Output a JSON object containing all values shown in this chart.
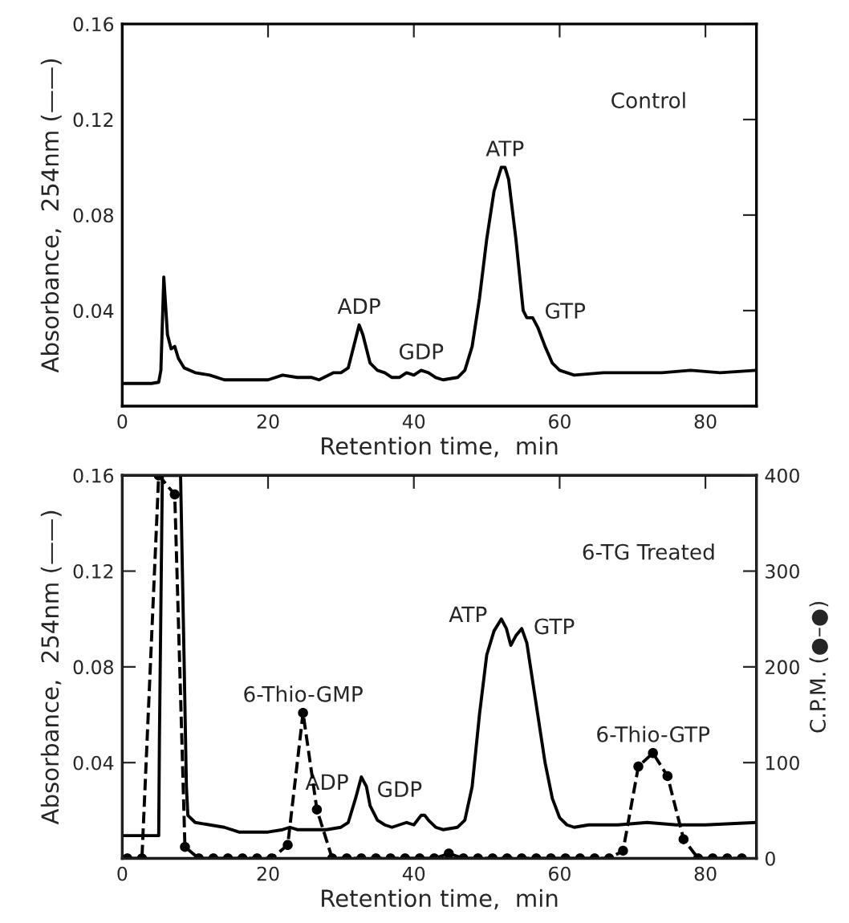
{
  "chart_data": [
    {
      "type": "line",
      "xlabel": "Retention time,  min",
      "ylabel": "Absorbance,  254nm (——)",
      "xlim": [
        0,
        87
      ],
      "ylim": [
        0,
        0.16
      ],
      "xticks": [
        0,
        20,
        40,
        60,
        80
      ],
      "yticks": [
        {
          "value": 0,
          "label": null
        },
        0.04,
        0.08,
        0.12,
        0.16
      ],
      "grid": false,
      "legend": false,
      "series": [
        {
          "color": "#000000",
          "marker": "none",
          "line_style": "solid",
          "x": [
            0,
            4,
            5,
            5.3,
            5.7,
            6.2,
            6.7,
            7.2,
            7.7,
            8.5,
            10,
            12,
            14,
            16,
            18,
            20,
            22,
            24,
            26,
            27,
            29,
            30,
            31,
            32,
            32.5,
            33,
            34,
            35,
            36,
            37,
            38,
            39,
            40,
            41,
            42,
            43,
            44,
            46,
            47,
            48,
            49,
            50,
            51,
            52,
            52.5,
            53,
            54,
            55,
            55.5,
            56.3,
            57,
            58,
            59,
            60,
            61,
            62,
            66,
            70,
            74,
            78,
            82,
            87
          ],
          "values": [
            0.0095,
            0.0095,
            0.01,
            0.015,
            0.054,
            0.03,
            0.024,
            0.025,
            0.02,
            0.016,
            0.014,
            0.013,
            0.011,
            0.011,
            0.011,
            0.011,
            0.013,
            0.012,
            0.012,
            0.011,
            0.014,
            0.014,
            0.016,
            0.028,
            0.034,
            0.03,
            0.018,
            0.015,
            0.014,
            0.012,
            0.012,
            0.014,
            0.013,
            0.015,
            0.014,
            0.012,
            0.011,
            0.012,
            0.015,
            0.025,
            0.045,
            0.07,
            0.09,
            0.1,
            0.1,
            0.095,
            0.07,
            0.04,
            0.037,
            0.037,
            0.033,
            0.025,
            0.018,
            0.015,
            0.014,
            0.013,
            0.014,
            0.014,
            0.014,
            0.015,
            0.014,
            0.015
          ]
        }
      ],
      "annotations": [
        "Control",
        {
          "text": "ADP",
          "x": 32.5,
          "y": 0.034
        },
        {
          "text": "GDP",
          "x": 41,
          "y": 0.015
        },
        {
          "text": "ATP",
          "x": 52.5,
          "y": 0.1
        },
        {
          "text": "GTP",
          "x": 57,
          "y": 0.033
        }
      ]
    },
    {
      "type": "line",
      "xlabel": "Retention time,  min",
      "ylabel": "Absorbance,  254nm (——)",
      "y2label": "C.P.M. (●–●)",
      "xlim": [
        0,
        87
      ],
      "ylim": [
        0,
        0.16
      ],
      "xticks": [
        0,
        20,
        40,
        60,
        80
      ],
      "yticks": [
        {
          "value": 0,
          "label": null
        },
        0.04,
        0.08,
        0.12,
        0.16
      ],
      "y2lim": [
        0,
        400
      ],
      "y2ticks": [
        0,
        100,
        200,
        300,
        400
      ],
      "grid": false,
      "legend": false,
      "series": [
        {
          "color": "#000000",
          "marker": "none",
          "line_style": "solid",
          "x": [
            0,
            5,
            5.1,
            5.5,
            8.0,
            8.5,
            8.8,
            9,
            10,
            12,
            14,
            16,
            18,
            20,
            22,
            23,
            24,
            26,
            28,
            30,
            31,
            32,
            32.8,
            33.5,
            34,
            35,
            36,
            37,
            38,
            39,
            40,
            41,
            41.5,
            42,
            43,
            44,
            46,
            47,
            48,
            49,
            50,
            51,
            52,
            52.7,
            53.3,
            54,
            54.8,
            55.5,
            56,
            57,
            58,
            59,
            60,
            61,
            62,
            64,
            68,
            72,
            76,
            80,
            87
          ],
          "values": [
            0.0095,
            0.0095,
            0.05,
            0.16,
            0.16,
            0.08,
            0.03,
            0.018,
            0.015,
            0.014,
            0.013,
            0.011,
            0.011,
            0.011,
            0.012,
            0.013,
            0.012,
            0.012,
            0.012,
            0.013,
            0.015,
            0.025,
            0.034,
            0.03,
            0.022,
            0.016,
            0.014,
            0.013,
            0.014,
            0.015,
            0.014,
            0.018,
            0.018,
            0.016,
            0.013,
            0.012,
            0.013,
            0.016,
            0.03,
            0.06,
            0.085,
            0.095,
            0.1,
            0.096,
            0.089,
            0.093,
            0.096,
            0.09,
            0.08,
            0.06,
            0.04,
            0.025,
            0.017,
            0.014,
            0.013,
            0.014,
            0.014,
            0.015,
            0.014,
            0.014,
            0.015
          ]
        },
        {
          "color": "#000000",
          "marker": "circle",
          "line_style": "dashed",
          "axis": "y2",
          "x": [
            0.7,
            2.7,
            5,
            7.2,
            8.6,
            10.5,
            12.5,
            14.5,
            16.5,
            18.5,
            20.5,
            22.7,
            24.8,
            26.7,
            28.8,
            30.8,
            32.8,
            34.8,
            36.8,
            38.8,
            40.8,
            42.8,
            44.8,
            46.8,
            48.8,
            50.8,
            52.8,
            54.8,
            56.8,
            58.8,
            60.8,
            62.8,
            64.8,
            66.8,
            68.7,
            70.8,
            72.8,
            74.8,
            77,
            79,
            81,
            83,
            85
          ],
          "values": [
            0,
            0,
            400,
            380,
            12,
            0,
            0,
            0,
            0,
            0,
            0,
            14,
            152,
            51,
            0,
            0,
            0,
            0,
            0,
            0,
            0,
            0,
            5,
            0,
            0,
            0,
            0,
            0,
            0,
            0,
            0,
            0,
            0,
            0,
            8,
            96,
            110,
            86,
            20,
            0,
            0,
            0,
            0
          ]
        }
      ],
      "annotations": [
        "6-TG Treated",
        {
          "text": "6-Thio-GMP",
          "x": 24.8,
          "y": 0.0608
        },
        {
          "text": "ADP",
          "x": 32,
          "y": 0.025
        },
        {
          "text": "GDP",
          "x": 34,
          "y": 0.022
        },
        {
          "text": "ATP",
          "x": 51,
          "y": 0.095
        },
        {
          "text": "GTP",
          "x": 55.5,
          "y": 0.09
        },
        {
          "text": "6-Thio-GTP",
          "x": 72.8,
          "y": 0.044
        }
      ]
    }
  ]
}
